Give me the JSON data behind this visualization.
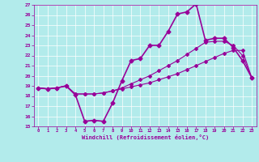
{
  "xlabel": "Windchill (Refroidissement éolien,°C)",
  "background_color": "#b2ebeb",
  "grid_color": "#ffffff",
  "line_color": "#990099",
  "xlim": [
    -0.5,
    23.5
  ],
  "ylim": [
    15,
    27
  ],
  "yticks": [
    15,
    16,
    17,
    18,
    19,
    20,
    21,
    22,
    23,
    24,
    25,
    26,
    27
  ],
  "xticks": [
    0,
    1,
    2,
    3,
    4,
    5,
    6,
    7,
    8,
    9,
    10,
    11,
    12,
    13,
    14,
    15,
    16,
    17,
    18,
    19,
    20,
    21,
    22,
    23
  ],
  "series": [
    {
      "x": [
        0,
        1,
        2,
        3,
        4,
        5,
        6,
        7,
        8,
        9,
        10,
        11,
        12,
        13,
        14,
        15,
        16,
        17,
        18,
        19,
        20,
        21,
        22,
        23
      ],
      "y": [
        18.8,
        18.7,
        18.8,
        19.0,
        18.1,
        15.5,
        15.6,
        15.5,
        17.3,
        19.5,
        21.5,
        21.7,
        23.0,
        23.0,
        24.4,
        26.1,
        26.3,
        27.1,
        23.5,
        23.7,
        23.7,
        22.8,
        21.5,
        19.8
      ],
      "marker": "D",
      "markersize": 2.5,
      "linewidth": 1.2
    },
    {
      "x": [
        0,
        1,
        2,
        3,
        4,
        5,
        6,
        7,
        8,
        9,
        10,
        11,
        12,
        13,
        14,
        15,
        16,
        17,
        18,
        19,
        20,
        21,
        22,
        23
      ],
      "y": [
        18.8,
        18.7,
        18.8,
        19.0,
        18.2,
        18.2,
        18.2,
        18.3,
        18.5,
        18.7,
        18.9,
        19.1,
        19.3,
        19.6,
        19.9,
        20.2,
        20.6,
        21.0,
        21.4,
        21.8,
        22.2,
        22.5,
        22.5,
        19.8
      ],
      "marker": "D",
      "markersize": 2.0,
      "linewidth": 0.8
    },
    {
      "x": [
        0,
        1,
        2,
        3,
        4,
        5,
        6,
        7,
        8,
        9,
        10,
        11,
        12,
        13,
        14,
        15,
        16,
        17,
        18,
        19,
        20,
        21,
        22,
        23
      ],
      "y": [
        18.8,
        18.7,
        18.8,
        19.0,
        18.2,
        18.2,
        18.2,
        18.3,
        18.5,
        18.8,
        19.2,
        19.6,
        20.0,
        20.5,
        21.0,
        21.5,
        22.1,
        22.7,
        23.3,
        23.4,
        23.4,
        23.0,
        22.0,
        19.8
      ],
      "marker": "D",
      "markersize": 2.0,
      "linewidth": 0.8
    }
  ]
}
